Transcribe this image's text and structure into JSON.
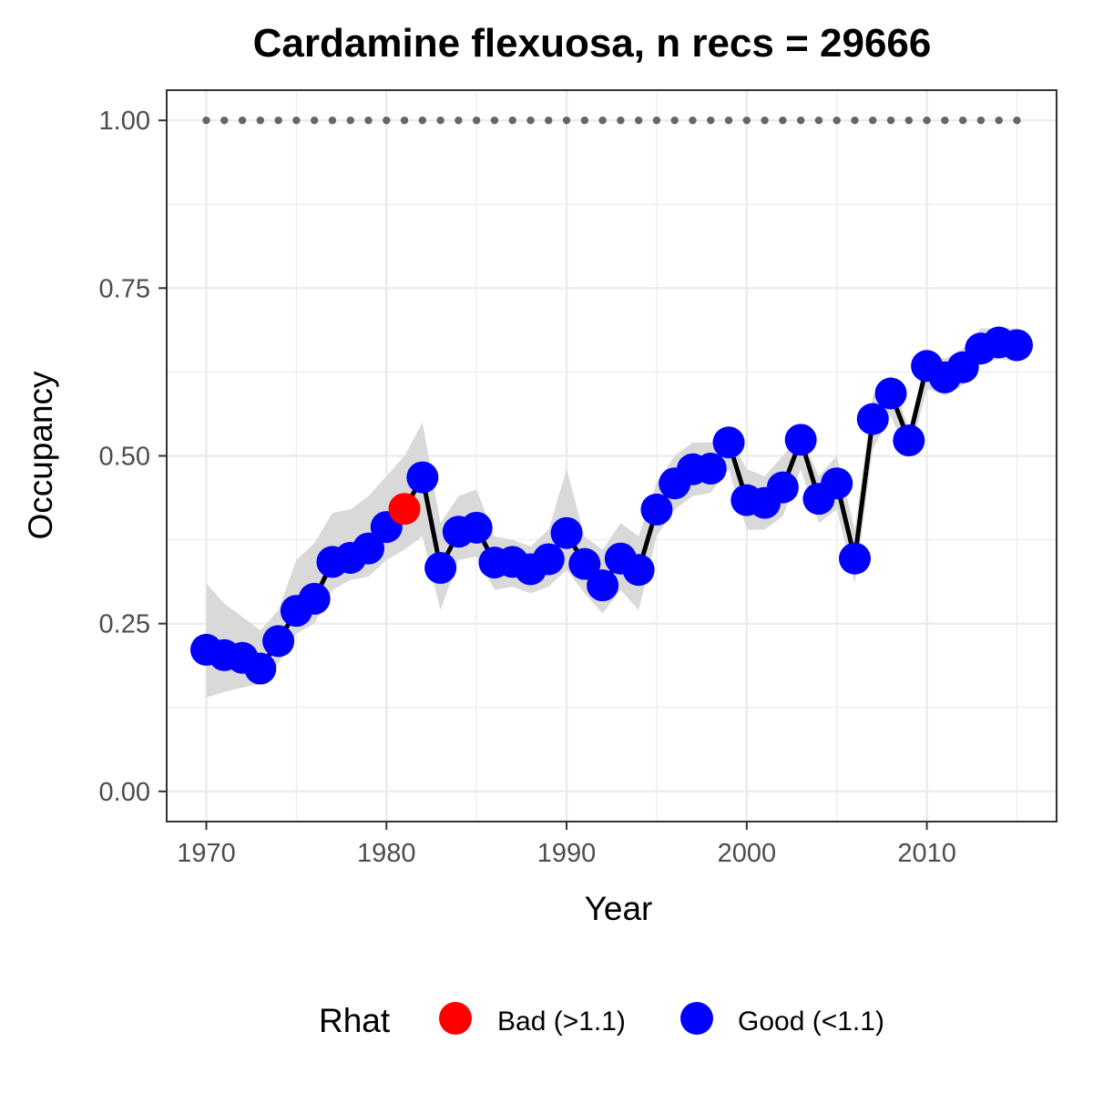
{
  "chart_data": {
    "type": "line",
    "title": "Cardamine flexuosa, n recs = 29666",
    "xlabel": "Year",
    "ylabel": "Occupancy",
    "xlim": [
      1967.8,
      1917.2
    ],
    "ylim": [
      -0.045,
      1.045
    ],
    "x_ticks": [
      1970,
      1980,
      1990,
      2000,
      2010
    ],
    "x_tick_labels": [
      "1970",
      "1980",
      "1990",
      "2000",
      "2010"
    ],
    "y_ticks": [
      0,
      0.25,
      0.5,
      0.75,
      1.0
    ],
    "y_tick_labels": [
      "0.00",
      "0.25",
      "0.50",
      "0.75",
      "1.00"
    ],
    "grid": true,
    "legend": {
      "title": "Rhat",
      "position": "bottom",
      "entries": [
        {
          "label": "Bad (>1.1)",
          "color": "#ff0000"
        },
        {
          "label": "Good (<1.1)",
          "color": "#0000ff"
        }
      ]
    },
    "reference_line": {
      "y": 1.0,
      "style": "dotted",
      "color": "#666666"
    },
    "series": [
      {
        "type": "line_with_points",
        "line_color": "#000000",
        "ribbon_color": "#d9d9d9",
        "x": [
          1970,
          1971,
          1972,
          1973,
          1974,
          1975,
          1976,
          1977,
          1978,
          1979,
          1980,
          1981,
          1982,
          1983,
          1984,
          1985,
          1986,
          1987,
          1988,
          1989,
          1990,
          1991,
          1992,
          1993,
          1994,
          1995,
          1996,
          1997,
          1998,
          1999,
          2000,
          2001,
          2002,
          2003,
          2004,
          2005,
          2006,
          2007,
          2008,
          2009,
          2010,
          2011,
          2012,
          2013,
          2014,
          2015
        ],
        "y": [
          0.211,
          0.203,
          0.199,
          0.183,
          0.224,
          0.269,
          0.287,
          0.342,
          0.348,
          0.362,
          0.394,
          0.421,
          0.468,
          0.333,
          0.387,
          0.393,
          0.341,
          0.342,
          0.331,
          0.346,
          0.385,
          0.339,
          0.307,
          0.347,
          0.33,
          0.42,
          0.459,
          0.48,
          0.481,
          0.52,
          0.434,
          0.43,
          0.453,
          0.524,
          0.436,
          0.459,
          0.347,
          0.555,
          0.593,
          0.523,
          0.634,
          0.617,
          0.632,
          0.66,
          0.669,
          0.665
        ],
        "lower": [
          0.14,
          0.148,
          0.155,
          0.16,
          0.19,
          0.235,
          0.25,
          0.3,
          0.315,
          0.32,
          0.345,
          0.36,
          0.38,
          0.27,
          0.345,
          0.35,
          0.3,
          0.305,
          0.295,
          0.305,
          0.33,
          0.295,
          0.265,
          0.3,
          0.27,
          0.38,
          0.42,
          0.44,
          0.445,
          0.48,
          0.39,
          0.39,
          0.41,
          0.48,
          0.4,
          0.42,
          0.31,
          0.51,
          0.56,
          0.495,
          0.6,
          0.59,
          0.605,
          0.635,
          0.645,
          0.64
        ],
        "upper": [
          0.31,
          0.28,
          0.26,
          0.24,
          0.27,
          0.345,
          0.37,
          0.415,
          0.42,
          0.44,
          0.47,
          0.5,
          0.55,
          0.4,
          0.44,
          0.45,
          0.38,
          0.375,
          0.365,
          0.39,
          0.48,
          0.38,
          0.36,
          0.4,
          0.38,
          0.46,
          0.5,
          0.52,
          0.52,
          0.53,
          0.48,
          0.47,
          0.5,
          0.53,
          0.47,
          0.5,
          0.39,
          0.59,
          0.62,
          0.54,
          0.65,
          0.645,
          0.66,
          0.69,
          0.69,
          0.69
        ],
        "rhat_flag": [
          "good",
          "good",
          "good",
          "good",
          "good",
          "good",
          "good",
          "good",
          "good",
          "good",
          "good",
          "bad",
          "good",
          "good",
          "good",
          "good",
          "good",
          "good",
          "good",
          "good",
          "good",
          "good",
          "good",
          "good",
          "good",
          "good",
          "good",
          "good",
          "good",
          "good",
          "good",
          "good",
          "good",
          "good",
          "good",
          "good",
          "good",
          "good",
          "good",
          "good",
          "good",
          "good",
          "good",
          "good",
          "good",
          "good"
        ]
      }
    ]
  }
}
